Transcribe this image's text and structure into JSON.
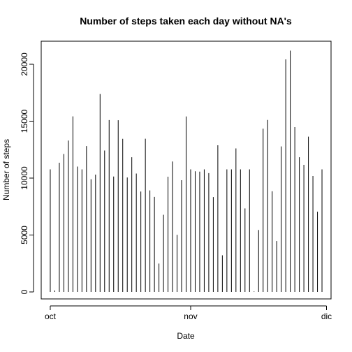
{
  "chart_data": {
    "type": "bar",
    "title": "Number of steps taken each day without NA's",
    "xlabel": "Date",
    "ylabel": "Number of steps",
    "x_start": "2012-10-01",
    "x_ticks": [
      {
        "label": "oct",
        "date": "2012-10-01"
      },
      {
        "label": "nov",
        "date": "2012-11-01"
      },
      {
        "label": "dic",
        "date": "2012-12-01"
      }
    ],
    "y_ticks": [
      0,
      5000,
      10000,
      15000,
      20000
    ],
    "ylim": [
      0,
      21800
    ],
    "xlim": [
      "2012-09-29",
      "2012-12-02"
    ],
    "grid": false,
    "bar_color": "#000000",
    "dates": [
      "2012-10-01",
      "2012-10-02",
      "2012-10-03",
      "2012-10-04",
      "2012-10-05",
      "2012-10-06",
      "2012-10-07",
      "2012-10-08",
      "2012-10-09",
      "2012-10-10",
      "2012-10-11",
      "2012-10-12",
      "2012-10-13",
      "2012-10-14",
      "2012-10-15",
      "2012-10-16",
      "2012-10-17",
      "2012-10-18",
      "2012-10-19",
      "2012-10-20",
      "2012-10-21",
      "2012-10-22",
      "2012-10-23",
      "2012-10-24",
      "2012-10-25",
      "2012-10-26",
      "2012-10-27",
      "2012-10-28",
      "2012-10-29",
      "2012-10-30",
      "2012-10-31",
      "2012-11-01",
      "2012-11-02",
      "2012-11-03",
      "2012-11-04",
      "2012-11-05",
      "2012-11-06",
      "2012-11-07",
      "2012-11-08",
      "2012-11-09",
      "2012-11-10",
      "2012-11-11",
      "2012-11-12",
      "2012-11-13",
      "2012-11-14",
      "2012-11-15",
      "2012-11-16",
      "2012-11-17",
      "2012-11-18",
      "2012-11-19",
      "2012-11-20",
      "2012-11-21",
      "2012-11-22",
      "2012-11-23",
      "2012-11-24",
      "2012-11-25",
      "2012-11-26",
      "2012-11-27",
      "2012-11-28",
      "2012-11-29",
      "2012-11-30"
    ],
    "values": [
      10766,
      126,
      11352,
      12116,
      13294,
      15420,
      11015,
      10766,
      12811,
      9900,
      10304,
      17382,
      12426,
      15098,
      10139,
      15084,
      13452,
      10056,
      11829,
      10395,
      8821,
      13460,
      8918,
      8355,
      2492,
      6778,
      10119,
      11458,
      5018,
      9819,
      15414,
      10766,
      10600,
      10571,
      10766,
      10439,
      8334,
      12883,
      3219,
      10766,
      10766,
      12608,
      10765,
      7336,
      10766,
      41,
      5441,
      14339,
      15110,
      8841,
      4472,
      12787,
      20427,
      21194,
      14478,
      11834,
      11162,
      13646,
      10183,
      7047,
      10766
    ]
  }
}
